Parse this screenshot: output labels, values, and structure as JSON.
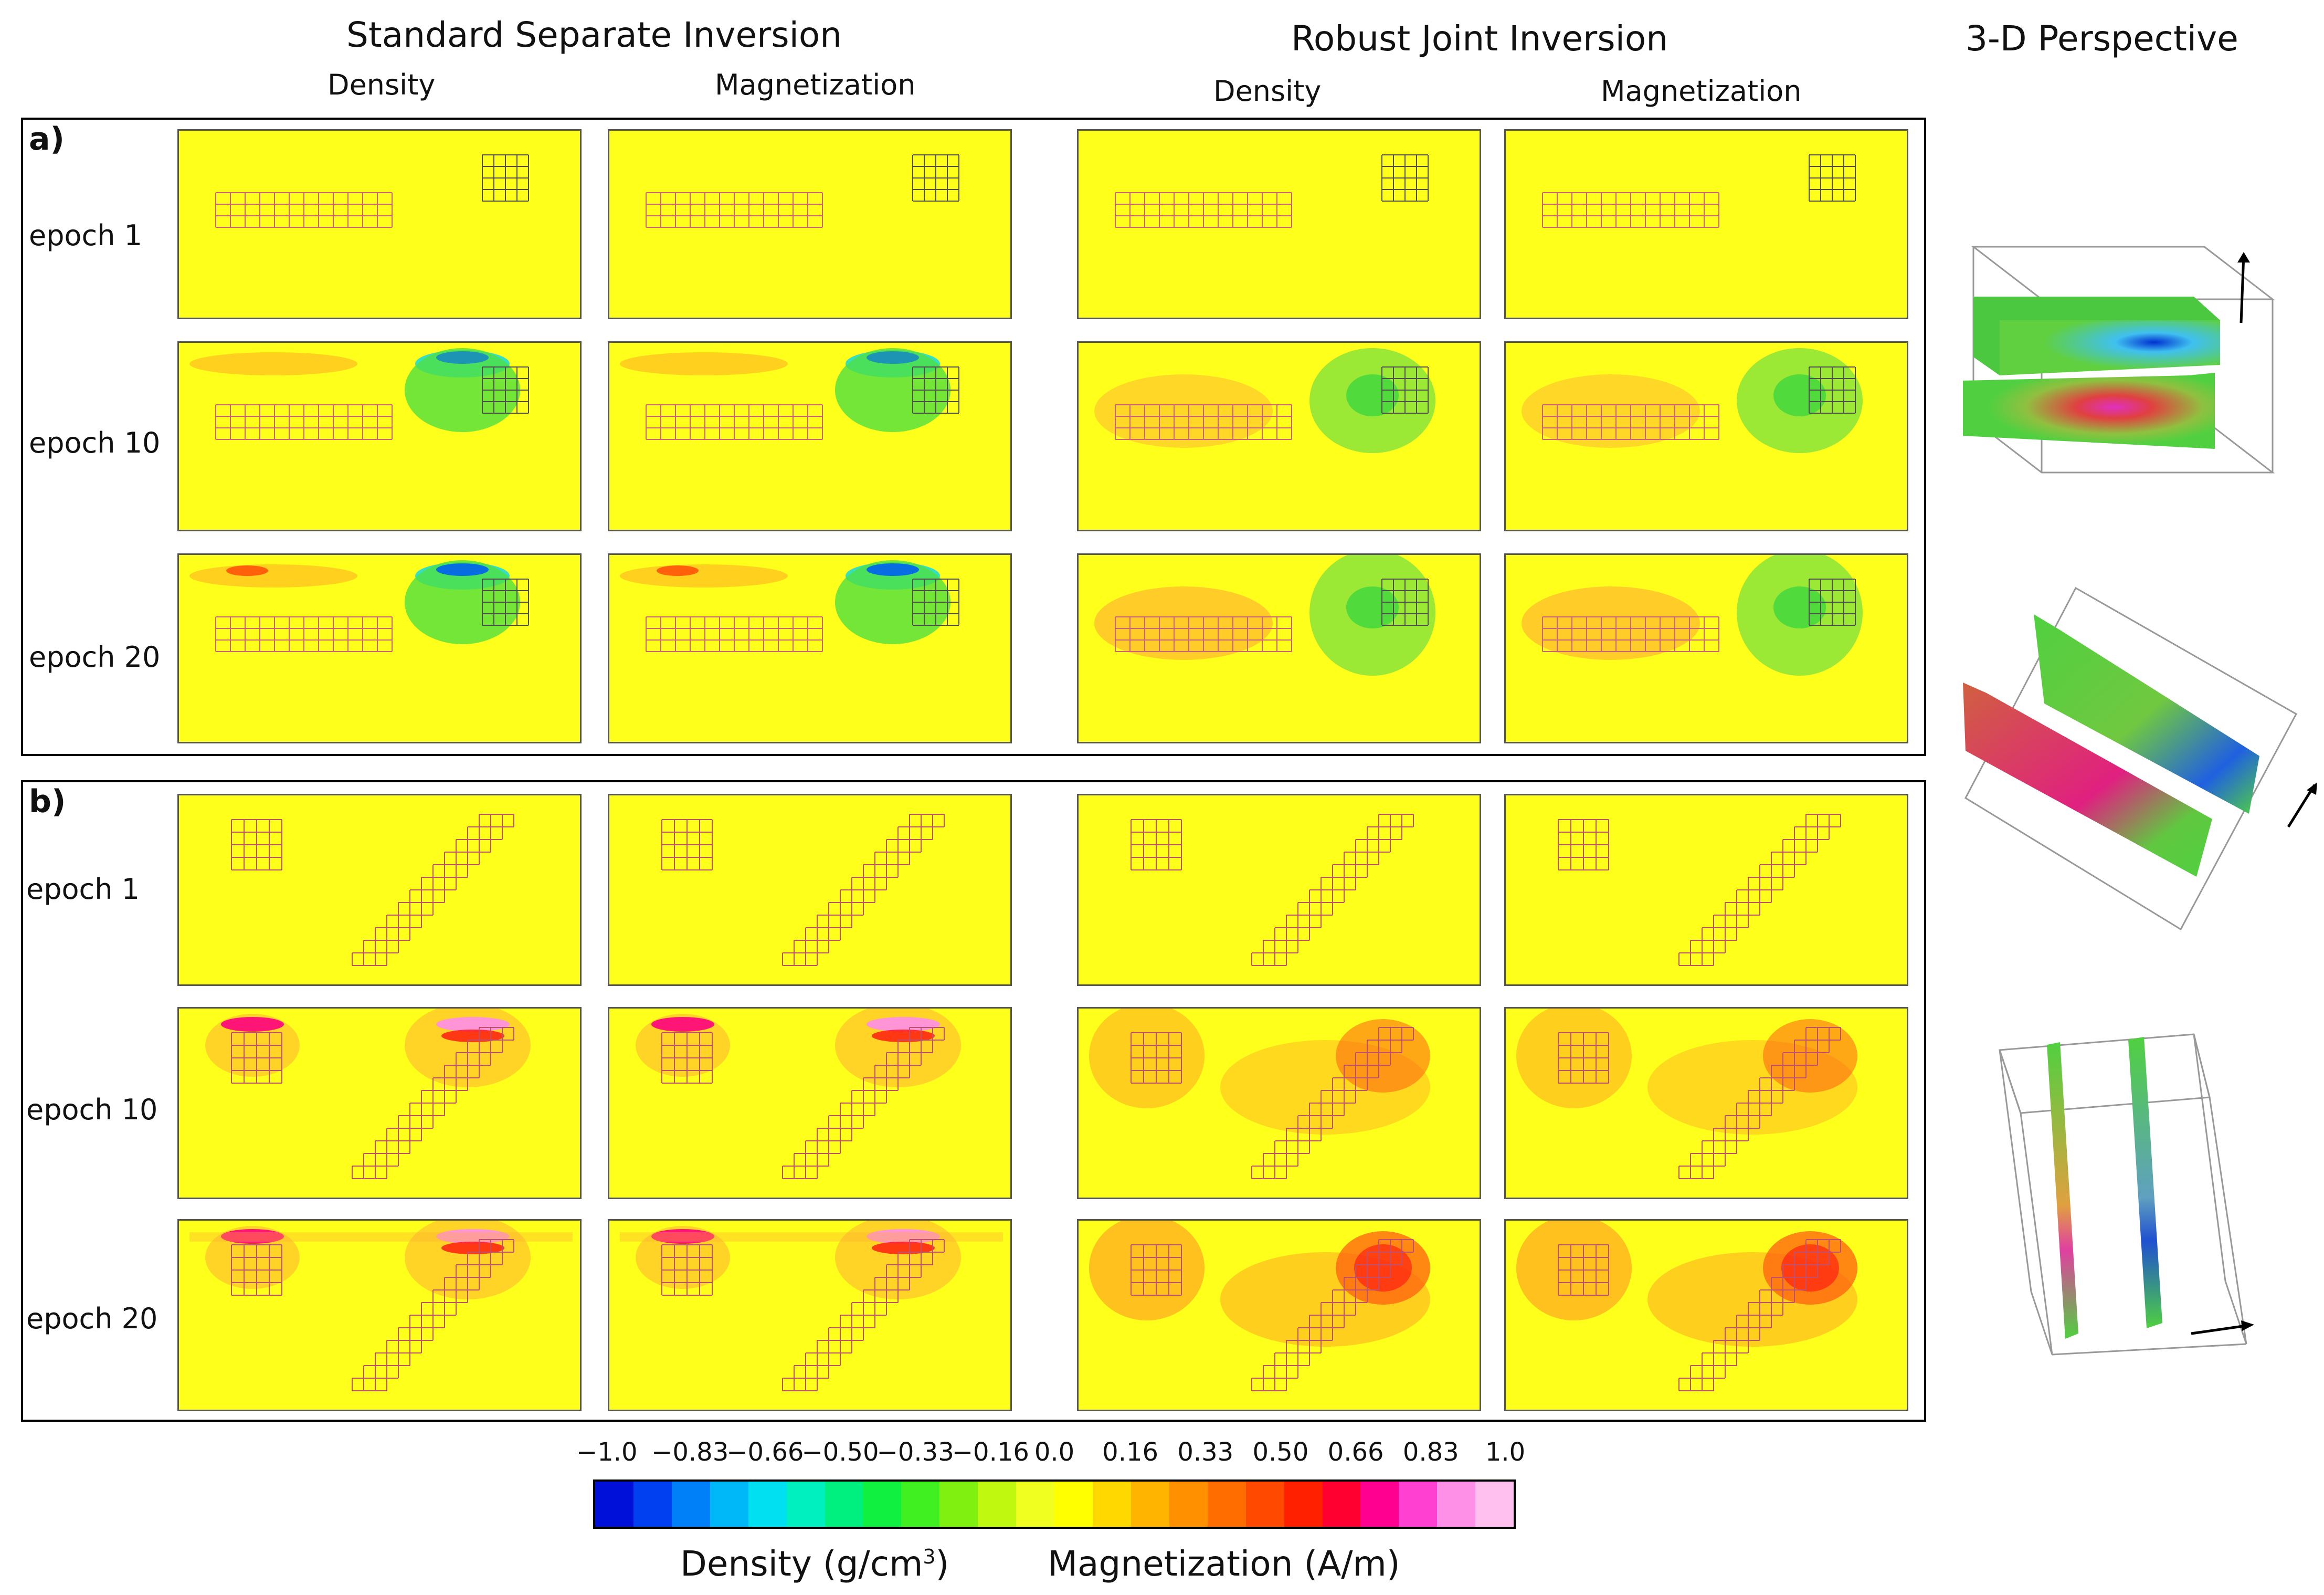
{
  "headers": {
    "separate": "Standard Separate Inversion",
    "joint": "Robust Joint Inversion",
    "perspective": "3-D Perspective",
    "density": "Density",
    "magnetization": "Magnetization"
  },
  "sections": {
    "a": {
      "label": "a)",
      "epochs": [
        "epoch 1",
        "epoch 10",
        "epoch 20"
      ]
    },
    "b": {
      "label": "b)",
      "epochs": [
        "epoch 1",
        "epoch 10",
        "epoch 20"
      ]
    }
  },
  "colorbar": {
    "ticks": [
      "−1.0",
      "−0.83",
      "−0.66",
      "−0.50",
      "−0.33",
      "−0.16",
      "0.0",
      "0.16",
      "0.33",
      "0.50",
      "0.66",
      "0.83",
      "1.0"
    ],
    "label_density": "Density (g/cm",
    "label_density_sup": "3",
    "label_density_close": ")",
    "label_magnetization": "Magnetization (A/m)",
    "colors": [
      "#0010d8",
      "#0040f0",
      "#0080f8",
      "#00b8f8",
      "#00e0f0",
      "#00f0c0",
      "#00f080",
      "#10f040",
      "#40f020",
      "#80f010",
      "#c0f810",
      "#f0ff20",
      "#ffff00",
      "#ffd800",
      "#ffb400",
      "#ff9000",
      "#ff6c00",
      "#ff4800",
      "#ff2000",
      "#ff0030",
      "#ff0090",
      "#ff40d0",
      "#ff90e8",
      "#ffc0f0"
    ]
  }
}
